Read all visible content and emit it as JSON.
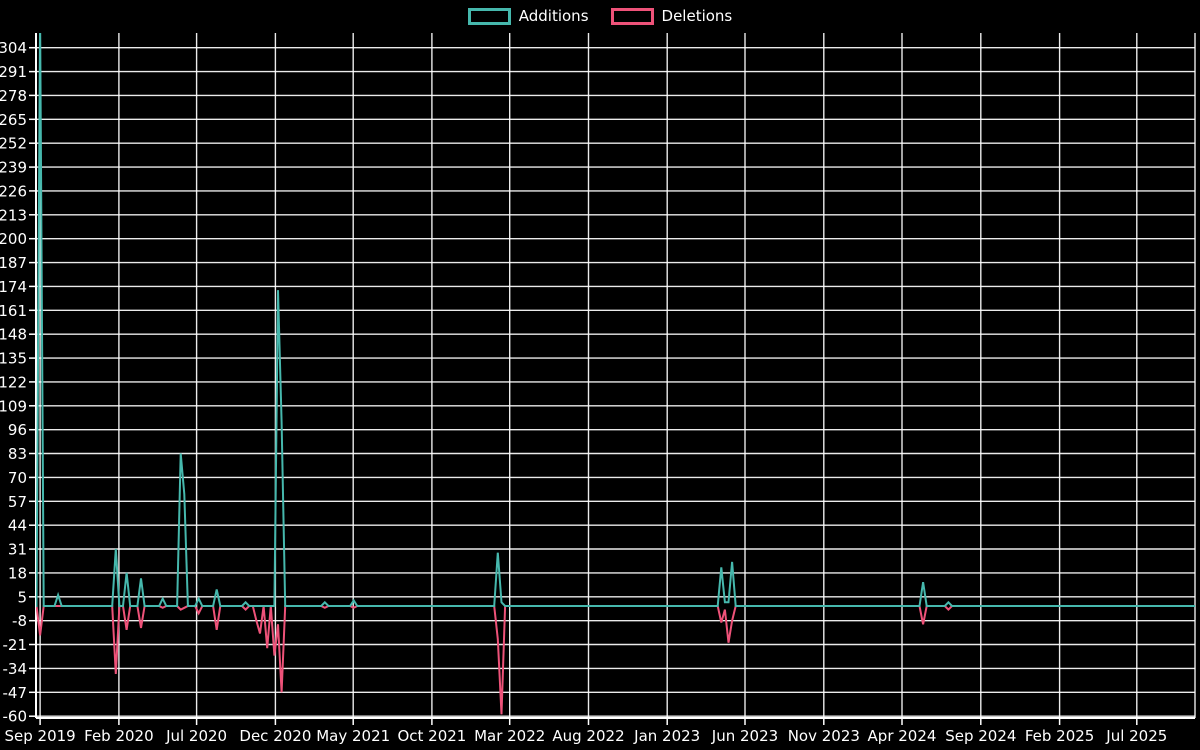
{
  "chart_data": {
    "type": "line",
    "title": "",
    "background_color": "#000000",
    "grid_color": "#ffffff",
    "axis_color": "#ffffff",
    "text_color": "#ffffff",
    "legend": {
      "position": "top-center",
      "items": [
        {
          "label": "Additions",
          "color": "#46b8ad"
        },
        {
          "label": "Deletions",
          "color": "#ee5279"
        }
      ]
    },
    "x_axis": {
      "type": "time",
      "domain": [
        "2019-08-24",
        "2025-10-22"
      ],
      "ticks": [
        {
          "label": "Sep 2019",
          "date": "2019-09-01"
        },
        {
          "label": "Feb 2020",
          "date": "2020-02-01"
        },
        {
          "label": "Jul 2020",
          "date": "2020-07-01"
        },
        {
          "label": "Dec 2020",
          "date": "2020-12-01"
        },
        {
          "label": "May 2021",
          "date": "2021-05-01"
        },
        {
          "label": "Oct 2021",
          "date": "2021-10-01"
        },
        {
          "label": "Mar 2022",
          "date": "2022-03-01"
        },
        {
          "label": "Aug 2022",
          "date": "2022-08-01"
        },
        {
          "label": "Jan 2023",
          "date": "2023-01-01"
        },
        {
          "label": "Jun 2023",
          "date": "2023-06-01"
        },
        {
          "label": "Nov 2023",
          "date": "2023-11-01"
        },
        {
          "label": "Apr 2024",
          "date": "2024-04-01"
        },
        {
          "label": "Sep 2024",
          "date": "2024-09-01"
        },
        {
          "label": "Feb 2025",
          "date": "2025-02-01"
        },
        {
          "label": "Jul 2025",
          "date": "2025-07-01"
        }
      ]
    },
    "y_axis": {
      "domain": [
        -61,
        312
      ],
      "tick_step": 13,
      "tick_values": [
        304,
        291,
        278,
        265,
        252,
        239,
        226,
        213,
        200,
        187,
        174,
        161,
        148,
        135,
        122,
        109,
        96,
        83,
        70,
        57,
        44,
        31,
        18,
        5,
        -8,
        -21,
        -34,
        -47,
        -60
      ]
    },
    "baseline": 0,
    "week_interval_days": 7,
    "series": [
      {
        "name": "Additions",
        "color": "#46b8ad",
        "points": [
          {
            "date": "2019-09-01",
            "value": 320,
            "clipped": true
          },
          {
            "date": "2019-10-06",
            "value": 6
          },
          {
            "date": "2020-01-26",
            "value": 31
          },
          {
            "date": "2020-02-16",
            "value": 18
          },
          {
            "date": "2020-03-15",
            "value": 15
          },
          {
            "date": "2020-04-26",
            "value": 4
          },
          {
            "date": "2020-05-31",
            "value": 83
          },
          {
            "date": "2020-06-07",
            "value": 61
          },
          {
            "date": "2020-07-05",
            "value": 4
          },
          {
            "date": "2020-08-09",
            "value": 9
          },
          {
            "date": "2020-10-04",
            "value": 2
          },
          {
            "date": "2020-12-06",
            "value": 172
          },
          {
            "date": "2020-12-13",
            "value": 100
          },
          {
            "date": "2021-03-07",
            "value": 2
          },
          {
            "date": "2021-05-02",
            "value": 3
          },
          {
            "date": "2022-02-06",
            "value": 29
          },
          {
            "date": "2022-02-13",
            "value": 2
          },
          {
            "date": "2023-04-16",
            "value": 21
          },
          {
            "date": "2023-04-23",
            "value": 2
          },
          {
            "date": "2023-04-30",
            "value": 2
          },
          {
            "date": "2023-05-07",
            "value": 24
          },
          {
            "date": "2024-05-12",
            "value": 13
          },
          {
            "date": "2024-06-30",
            "value": 2
          }
        ]
      },
      {
        "name": "Deletions",
        "color": "#ee5279",
        "points": [
          {
            "date": "2019-09-01",
            "value": -16
          },
          {
            "date": "2020-01-26",
            "value": -37
          },
          {
            "date": "2020-02-16",
            "value": -13
          },
          {
            "date": "2020-03-15",
            "value": -12
          },
          {
            "date": "2020-04-26",
            "value": -1
          },
          {
            "date": "2020-05-31",
            "value": -2
          },
          {
            "date": "2020-06-07",
            "value": -1
          },
          {
            "date": "2020-07-05",
            "value": -4
          },
          {
            "date": "2020-08-09",
            "value": -13
          },
          {
            "date": "2020-10-04",
            "value": -2
          },
          {
            "date": "2020-10-25",
            "value": -8
          },
          {
            "date": "2020-11-01",
            "value": -15
          },
          {
            "date": "2020-11-15",
            "value": -23
          },
          {
            "date": "2020-11-29",
            "value": -27
          },
          {
            "date": "2020-12-06",
            "value": -10
          },
          {
            "date": "2020-12-13",
            "value": -47
          },
          {
            "date": "2021-03-07",
            "value": -1
          },
          {
            "date": "2021-05-02",
            "value": -1
          },
          {
            "date": "2022-02-06",
            "value": -18
          },
          {
            "date": "2022-02-13",
            "value": -59
          },
          {
            "date": "2023-04-16",
            "value": -9
          },
          {
            "date": "2023-04-23",
            "value": -2
          },
          {
            "date": "2023-04-30",
            "value": -20
          },
          {
            "date": "2023-05-07",
            "value": -8
          },
          {
            "date": "2024-05-12",
            "value": -10
          },
          {
            "date": "2024-06-30",
            "value": -2
          }
        ]
      }
    ],
    "notes": "Weekly additions/deletions line chart; the Additions spike in the week of 2019-09-01 exceeds the visible y-range and is clipped at the top of the plot."
  }
}
